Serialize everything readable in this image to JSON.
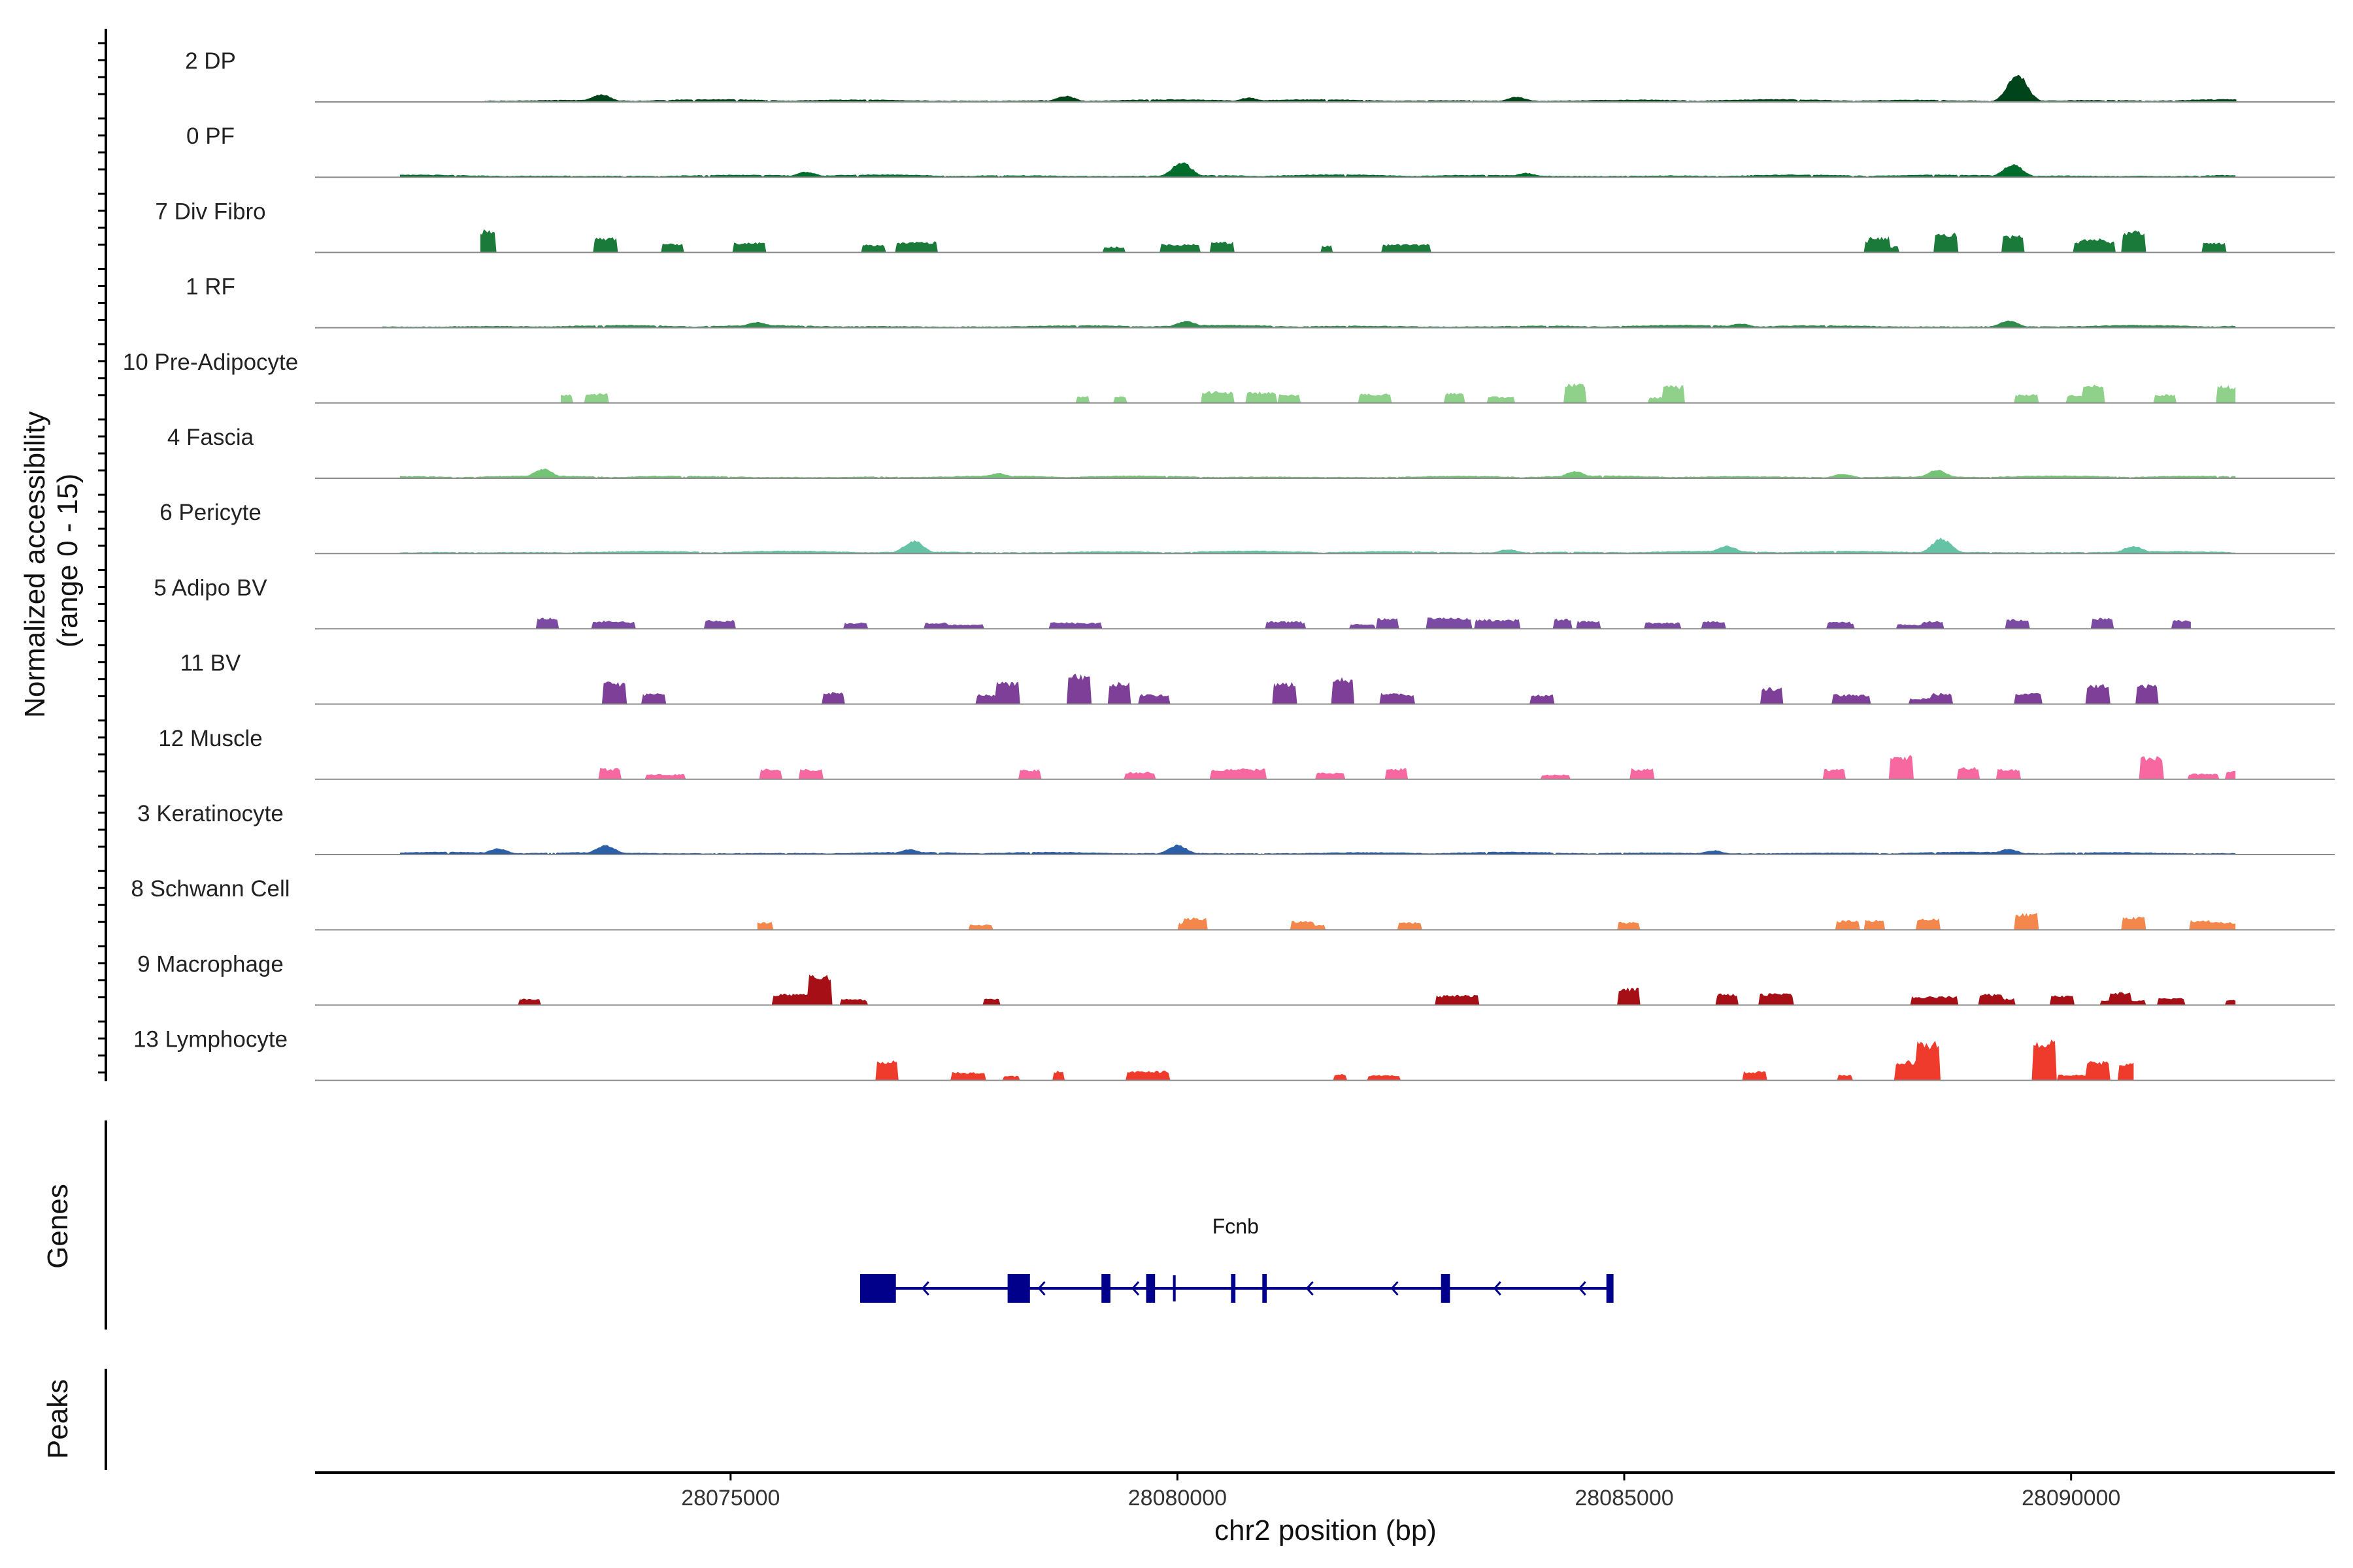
{
  "chart_data": {
    "type": "area",
    "title": "",
    "ylabel": "Normalized accessibility",
    "ylabel_range": "(range 0 - 15)",
    "ylim": [
      0,
      15
    ],
    "xlabel": "chr2 position (bp)",
    "xlim": [
      28070350,
      28092950
    ],
    "x_ticks": [
      28075000,
      28080000,
      28085000,
      28090000
    ],
    "x_tick_labels": [
      "28075000",
      "28080000",
      "28085000",
      "28090000"
    ],
    "panel_labels": {
      "genes": "Genes",
      "peaks": "Peaks"
    },
    "tracks": [
      {
        "name": "2 DP",
        "color": "#00441b",
        "style": "wavy",
        "start": 28072250,
        "end": 28091850,
        "peaks": [
          [
            28073550,
            1.8
          ],
          [
            28089400,
            6.5
          ],
          [
            28083800,
            1.2
          ],
          [
            28080800,
            1.0
          ],
          [
            28078750,
            1.4
          ]
        ]
      },
      {
        "name": "0 PF",
        "color": "#006d2c",
        "style": "wavy",
        "start": 28071300,
        "end": 28091850,
        "peaks": [
          [
            28080050,
            3.5
          ],
          [
            28089350,
            3.0
          ],
          [
            28075850,
            1.3
          ],
          [
            28083900,
            1.0
          ]
        ]
      },
      {
        "name": "7 Div Fibro",
        "color": "#1a7a3a",
        "style": "blocky",
        "start": 28072200,
        "end": 28091850,
        "peaks": [
          [
            28072250,
            5.2
          ],
          [
            28073600,
            3.5
          ],
          [
            28074350,
            2.0
          ],
          [
            28075250,
            2.0
          ],
          [
            28076600,
            1.8
          ],
          [
            28077150,
            2.0
          ],
          [
            28080500,
            2.4
          ],
          [
            28087850,
            3.6
          ],
          [
            28088600,
            4.4
          ],
          [
            28089350,
            4.0
          ],
          [
            28090250,
            3.2
          ],
          [
            28090700,
            5.0
          ],
          [
            28091600,
            2.2
          ]
        ]
      },
      {
        "name": "1 RF",
        "color": "#2e8b4c",
        "style": "wavy",
        "start": 28071100,
        "end": 28091850,
        "peaks": [
          [
            28075300,
            1.4
          ],
          [
            28080100,
            1.6
          ],
          [
            28089300,
            1.6
          ],
          [
            28086300,
            1.0
          ]
        ]
      },
      {
        "name": "10 Pre-Adipocyte",
        "color": "#8fd18a",
        "style": "blocky",
        "start": 28073100,
        "end": 28091850,
        "peaks": [
          [
            28073100,
            2.0
          ],
          [
            28073500,
            2.2
          ],
          [
            28081250,
            2.0
          ],
          [
            28084450,
            4.5
          ],
          [
            28085550,
            4.0
          ],
          [
            28089500,
            2.0
          ],
          [
            28090250,
            4.2
          ],
          [
            28091050,
            2.0
          ],
          [
            28091750,
            4.0
          ]
        ]
      },
      {
        "name": "4 Fascia",
        "color": "#74c476",
        "style": "wavy",
        "start": 28071300,
        "end": 28091850,
        "peaks": [
          [
            28072900,
            2.2
          ],
          [
            28078000,
            1.2
          ],
          [
            28084450,
            1.6
          ],
          [
            28088500,
            2.0
          ],
          [
            28087450,
            1.0
          ]
        ]
      },
      {
        "name": "6 Pericyte",
        "color": "#66c2a4",
        "style": "wavy",
        "start": 28071300,
        "end": 28091850,
        "peaks": [
          [
            28077050,
            3.0
          ],
          [
            28088550,
            3.5
          ],
          [
            28086150,
            1.8
          ],
          [
            28090700,
            1.8
          ],
          [
            28083700,
            1.0
          ]
        ]
      },
      {
        "name": "5 Adipo BV",
        "color": "#7b4aa3",
        "style": "blocky",
        "start": 28072700,
        "end": 28091350,
        "peaks": [
          [
            28072950,
            2.5
          ],
          [
            28073700,
            1.8
          ],
          [
            28076400,
            1.4
          ],
          [
            28077300,
            1.4
          ],
          [
            28078700,
            1.5
          ],
          [
            28081300,
            1.4
          ],
          [
            28082350,
            2.4
          ],
          [
            28083000,
            2.5
          ],
          [
            28084600,
            1.8
          ],
          [
            28086000,
            1.8
          ],
          [
            28087400,
            1.6
          ],
          [
            28088450,
            1.8
          ],
          [
            28089400,
            2.2
          ],
          [
            28090350,
            2.5
          ],
          [
            28091250,
            2.0
          ]
        ]
      },
      {
        "name": "11 BV",
        "color": "#7d3f98",
        "style": "blocky",
        "start": 28073500,
        "end": 28091200,
        "peaks": [
          [
            28073700,
            5.0
          ],
          [
            28076150,
            2.7
          ],
          [
            28078100,
            5.0
          ],
          [
            28078900,
            7.0
          ],
          [
            28079350,
            5.0
          ],
          [
            28081200,
            5.0
          ],
          [
            28081850,
            6.2
          ],
          [
            28082400,
            2.5
          ],
          [
            28086650,
            3.8
          ],
          [
            28088550,
            2.5
          ],
          [
            28089500,
            2.4
          ],
          [
            28090300,
            4.5
          ],
          [
            28090850,
            4.5
          ]
        ]
      },
      {
        "name": "12 Muscle",
        "color": "#f768a1",
        "style": "blocky",
        "start": 28073500,
        "end": 28091850,
        "peaks": [
          [
            28073650,
            2.5
          ],
          [
            28075450,
            2.4
          ],
          [
            28075900,
            2.4
          ],
          [
            28078350,
            2.2
          ],
          [
            28080500,
            2.2
          ],
          [
            28082450,
            2.5
          ],
          [
            28085200,
            2.5
          ],
          [
            28087350,
            2.4
          ],
          [
            28088100,
            5.5
          ],
          [
            28088850,
            2.8
          ],
          [
            28089300,
            2.4
          ],
          [
            28090900,
            5.2
          ],
          [
            28091850,
            2.0
          ]
        ]
      },
      {
        "name": "3 Keratinocyte",
        "color": "#2b5fa8",
        "style": "wavy",
        "start": 28071300,
        "end": 28091850,
        "peaks": [
          [
            28073600,
            2.2
          ],
          [
            28080000,
            2.2
          ],
          [
            28072400,
            1.4
          ],
          [
            28077000,
            1.2
          ],
          [
            28089300,
            1.3
          ],
          [
            28086000,
            1.0
          ]
        ]
      },
      {
        "name": "8 Schwann Cell",
        "color": "#f4874b",
        "style": "blocky",
        "start": 28075300,
        "end": 28091850,
        "peaks": [
          [
            28075350,
            1.8
          ],
          [
            28077800,
            1.2
          ],
          [
            28080200,
            2.8
          ],
          [
            28081400,
            2.0
          ],
          [
            28082600,
            1.8
          ],
          [
            28085050,
            1.8
          ],
          [
            28087500,
            2.2
          ],
          [
            28088400,
            2.6
          ],
          [
            28089500,
            3.8
          ],
          [
            28090700,
            3.0
          ],
          [
            28091450,
            2.2
          ]
        ]
      },
      {
        "name": "9 Macrophage",
        "color": "#a50f15",
        "style": "blocky",
        "start": 28072600,
        "end": 28091850,
        "peaks": [
          [
            28072750,
            1.5
          ],
          [
            28075600,
            2.6
          ],
          [
            28076000,
            7.2
          ],
          [
            28076350,
            1.5
          ],
          [
            28085050,
            4.0
          ],
          [
            28086150,
            2.6
          ],
          [
            28088500,
            1.8
          ],
          [
            28089100,
            2.6
          ],
          [
            28089900,
            2.2
          ],
          [
            28090550,
            3.0
          ],
          [
            28091100,
            1.6
          ],
          [
            28091850,
            1.2
          ]
        ]
      },
      {
        "name": "13 Lymphocyte",
        "color": "#ef3b2c",
        "style": "blocky",
        "start": 28076500,
        "end": 28090700,
        "peaks": [
          [
            28076750,
            4.5
          ],
          [
            28088150,
            4.5
          ],
          [
            28088400,
            9.0
          ],
          [
            28089700,
            9.5
          ],
          [
            28090300,
            4.5
          ],
          [
            28090650,
            4.0
          ]
        ]
      }
    ],
    "gene": {
      "name": "Fcnb",
      "color": "#00008b",
      "strand": "-",
      "start": 28076450,
      "end": 28084850,
      "exons": [
        [
          28076450,
          28076850,
          "wide"
        ],
        [
          28078100,
          28078350,
          "wide"
        ],
        [
          28079150,
          28079250,
          "narrow"
        ],
        [
          28079650,
          28079750,
          "narrow"
        ],
        [
          28079950,
          28079980,
          "hair"
        ],
        [
          28080600,
          28080650,
          "narrow"
        ],
        [
          28080950,
          28081000,
          "narrow"
        ],
        [
          28082950,
          28083050,
          "narrow"
        ],
        [
          28084800,
          28084880,
          "narrow"
        ]
      ],
      "arrows": [
        28077150,
        28078450,
        28079500,
        28081450,
        28082400,
        28083550,
        28084500
      ]
    }
  }
}
